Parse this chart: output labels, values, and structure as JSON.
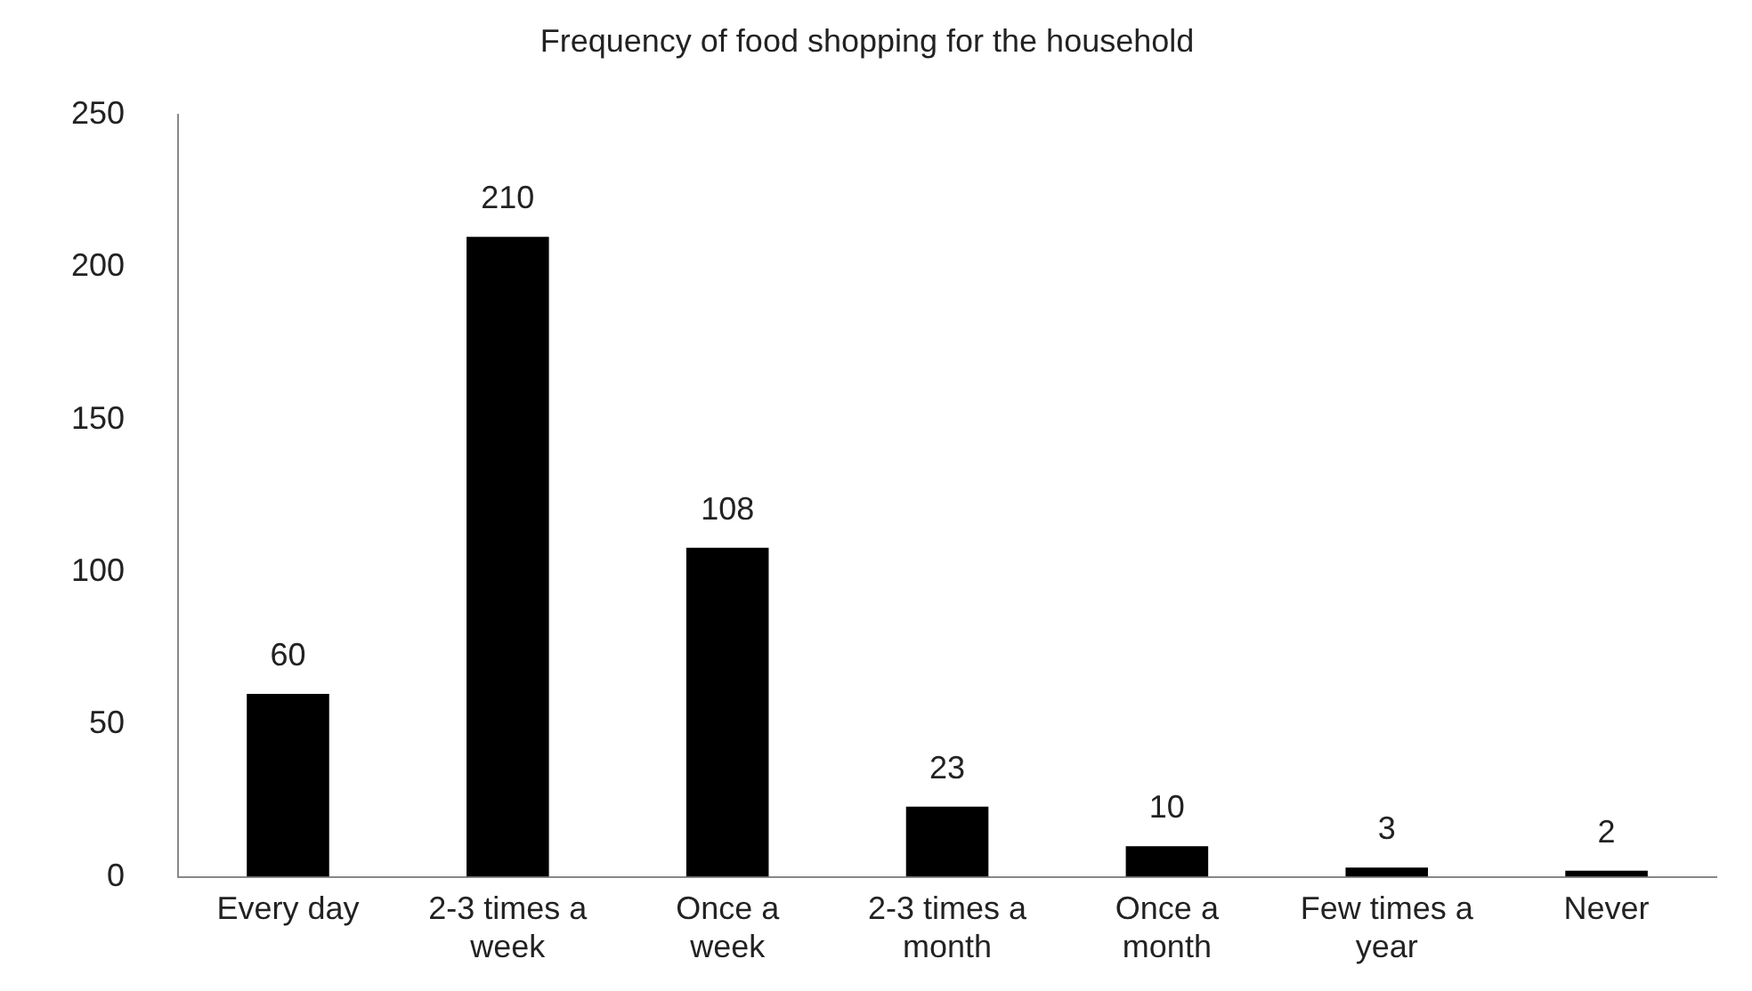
{
  "chart_data": {
    "type": "bar",
    "title": "Frequency of food shopping for the household",
    "categories": [
      "Every day",
      "2-3 times a week",
      "Once a week",
      "2-3 times a month",
      "Once a month",
      "Few times a year",
      "Never"
    ],
    "values": [
      60,
      210,
      108,
      23,
      10,
      3,
      2
    ],
    "color": "#000000",
    "ylim": [
      0,
      250
    ],
    "yticks": [
      0,
      50,
      100,
      150,
      200,
      250
    ],
    "grid": false,
    "legend": false,
    "data_labels": true
  }
}
